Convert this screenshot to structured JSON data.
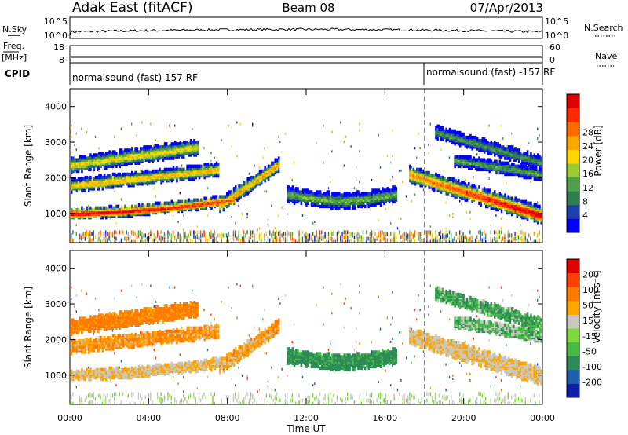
{
  "header": {
    "station": "Adak East (fitACF)",
    "beam": "Beam 08",
    "date": "07/Apr/2013"
  },
  "side_labels": {
    "nsky": "N.Sky",
    "nsearch": "N.Search",
    "freq": "Freq.",
    "mhz": "[MHz]",
    "nave": "Nave",
    "cpid": "CPID"
  },
  "small_axes": {
    "noise_ticks": [
      "10^5",
      "10^0"
    ],
    "freq_ticks": [
      "18",
      "8"
    ],
    "nave_ticks": [
      "60",
      "0"
    ]
  },
  "cpid_segments": [
    {
      "label": "normalsound (fast) 157 RF",
      "start_hour": 0
    },
    {
      "label": "normalsound (fast) -157 RF",
      "start_hour": 18
    }
  ],
  "chart_data": [
    {
      "type": "heatmap",
      "panel": "power",
      "ylabel": "Slant Range [km]",
      "xlabel": "Time UT",
      "x_ticks": [
        "00:00",
        "04:00",
        "08:00",
        "12:00",
        "16:00",
        "20:00",
        "00:00"
      ],
      "xlim_hours": [
        0,
        24
      ],
      "y_ticks": [
        1000,
        2000,
        3000,
        4000
      ],
      "ylim_km": [
        180,
        4500
      ],
      "colorbar": {
        "label": "Power [dB]",
        "ticks": [
          4,
          8,
          12,
          16,
          20,
          24,
          28
        ],
        "colors": [
          "#0000ff",
          "#1f3fb0",
          "#2e7d4f",
          "#4fa04a",
          "#9acd32",
          "#ffd700",
          "#ffa500",
          "#ff6a00",
          "#ff2a00",
          "#e00000"
        ]
      }
    },
    {
      "type": "heatmap",
      "panel": "velocity",
      "ylabel": "Slant Range [km]",
      "xlabel": "Time UT",
      "x_ticks": [
        "00:00",
        "04:00",
        "08:00",
        "12:00",
        "16:00",
        "20:00",
        "00:00"
      ],
      "xlim_hours": [
        0,
        24
      ],
      "y_ticks": [
        1000,
        2000,
        3000,
        4000
      ],
      "ylim_km": [
        180,
        4500
      ],
      "colorbar": {
        "label": "Velocity [m s⁻¹]",
        "ticks": [
          200,
          100,
          50,
          15,
          -15,
          -50,
          -100,
          -200
        ],
        "colors": [
          "#0a1ea8",
          "#1f5fb0",
          "#2e8b57",
          "#44bb44",
          "#7fd93a",
          "#c8c8c0",
          "#ffa500",
          "#ff7a00",
          "#ff4000",
          "#e00000"
        ]
      }
    }
  ]
}
